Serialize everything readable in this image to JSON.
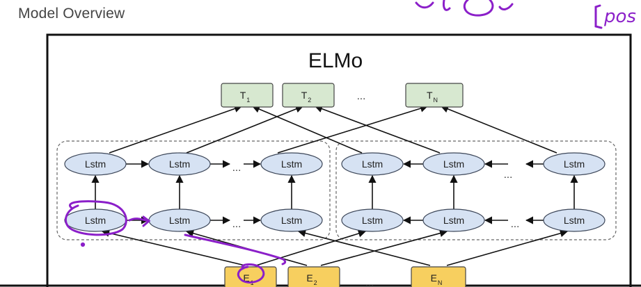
{
  "slide": {
    "title": "Model Overview"
  },
  "diagram": {
    "title": "ELMo",
    "lstm_label": "Lstm",
    "ellipsis": "...",
    "outputs": [
      {
        "base": "T",
        "sub": "1"
      },
      {
        "base": "T",
        "sub": "2"
      },
      {
        "base": "T",
        "sub": "N"
      }
    ],
    "inputs": [
      {
        "base": "E",
        "sub": "1"
      },
      {
        "base": "E",
        "sub": "2"
      },
      {
        "base": "E",
        "sub": "N"
      }
    ],
    "colors": {
      "lstm_fill": "#d6e2f3",
      "output_fill": "#d7e8d0",
      "input_fill": "#f7cf5f",
      "annotation": "#8b1fc9"
    }
  }
}
